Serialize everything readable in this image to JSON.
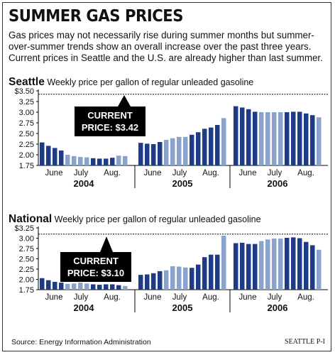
{
  "title": "SUMMER GAS PRICES",
  "intro": "Gas prices may not necessarily rise during summer months but summer-over-summer trends show an overall increase over the past three years. Current prices in Seattle and the U.S. are already higher than last summer.",
  "source": "Source: Energy Information Administration",
  "credit": "SEATTLE P-I",
  "colors": {
    "summer_bar": "#1e3c86",
    "mid_bar": "#8aa3cc",
    "callout_bg": "#000000",
    "axis": "#000000"
  },
  "chart_data": [
    {
      "type": "bar",
      "name": "Seattle",
      "subtitle": "Weekly price per gallon of regular unleaded gasoline",
      "ylim": [
        1.75,
        3.5
      ],
      "yticks": [
        "$3.50",
        "3.25",
        "3.00",
        "2.75",
        "2.50",
        "2.25",
        "2.00",
        "1.75"
      ],
      "ytick_values": [
        3.5,
        3.25,
        3.0,
        2.75,
        2.5,
        2.25,
        2.0,
        1.75
      ],
      "reference_line": 3.42,
      "callout": [
        "CURRENT",
        "PRICE: $3.42"
      ],
      "years": [
        {
          "label": "2004",
          "months": [
            "June",
            "July",
            "Aug."
          ],
          "values": [
            2.29,
            2.21,
            2.16,
            2.1,
            2.0,
            1.97,
            1.95,
            1.94,
            1.92,
            1.91,
            1.91,
            1.93,
            1.98,
            1.97
          ],
          "shade": [
            "d",
            "d",
            "d",
            "d",
            "l",
            "l",
            "l",
            "l",
            "d",
            "d",
            "d",
            "d",
            "l",
            "l"
          ]
        },
        {
          "label": "2005",
          "months": [
            "June",
            "July",
            "Aug."
          ],
          "values": [
            2.28,
            2.26,
            2.25,
            2.3,
            2.35,
            2.39,
            2.42,
            2.42,
            2.47,
            2.53,
            2.61,
            2.64,
            2.7,
            2.86
          ],
          "shade": [
            "d",
            "d",
            "d",
            "d",
            "l",
            "l",
            "l",
            "l",
            "d",
            "d",
            "d",
            "d",
            "d",
            "l"
          ]
        },
        {
          "label": "2006",
          "months": [
            "June",
            "July",
            "Aug."
          ],
          "values": [
            3.14,
            3.11,
            3.07,
            3.01,
            3.0,
            3.0,
            3.0,
            3.0,
            3.0,
            3.01,
            3.01,
            2.97,
            2.93,
            2.88
          ],
          "shade": [
            "d",
            "d",
            "d",
            "d",
            "l",
            "l",
            "l",
            "l",
            "d",
            "d",
            "d",
            "d",
            "d",
            "l"
          ]
        }
      ]
    },
    {
      "type": "bar",
      "name": "National",
      "subtitle": "Weekly price per gallon of regular unleaded gasoline",
      "ylim": [
        1.75,
        3.25
      ],
      "yticks": [
        "$3.25",
        "3.00",
        "2.75",
        "2.50",
        "2.25",
        "2.00",
        "1.75"
      ],
      "ytick_values": [
        3.25,
        3.0,
        2.75,
        2.5,
        2.25,
        2.0,
        1.75
      ],
      "reference_line": 3.1,
      "callout": [
        "CURRENT",
        "PRICE: $3.10"
      ],
      "years": [
        {
          "label": "2004",
          "months": [
            "June",
            "July",
            "Aug."
          ],
          "values": [
            2.03,
            1.98,
            1.94,
            1.92,
            1.89,
            1.9,
            1.92,
            1.9,
            1.88,
            1.87,
            1.88,
            1.88,
            1.86,
            1.84
          ],
          "shade": [
            "d",
            "d",
            "d",
            "d",
            "l",
            "l",
            "l",
            "l",
            "d",
            "d",
            "d",
            "d",
            "d",
            "l"
          ]
        },
        {
          "label": "2005",
          "months": [
            "June",
            "July",
            "Aug."
          ],
          "values": [
            2.11,
            2.12,
            2.15,
            2.2,
            2.22,
            2.32,
            2.31,
            2.29,
            2.28,
            2.36,
            2.54,
            2.6,
            2.6,
            3.06
          ],
          "shade": [
            "d",
            "d",
            "d",
            "d",
            "l",
            "l",
            "l",
            "l",
            "d",
            "d",
            "d",
            "d",
            "d",
            "l"
          ]
        },
        {
          "label": "2006",
          "months": [
            "June",
            "July",
            "Aug."
          ],
          "values": [
            2.88,
            2.89,
            2.86,
            2.86,
            2.93,
            2.97,
            2.99,
            2.99,
            3.01,
            3.02,
            3.0,
            2.91,
            2.83,
            2.72
          ],
          "shade": [
            "d",
            "d",
            "d",
            "d",
            "l",
            "l",
            "l",
            "l",
            "d",
            "d",
            "d",
            "d",
            "d",
            "l"
          ]
        }
      ]
    }
  ]
}
